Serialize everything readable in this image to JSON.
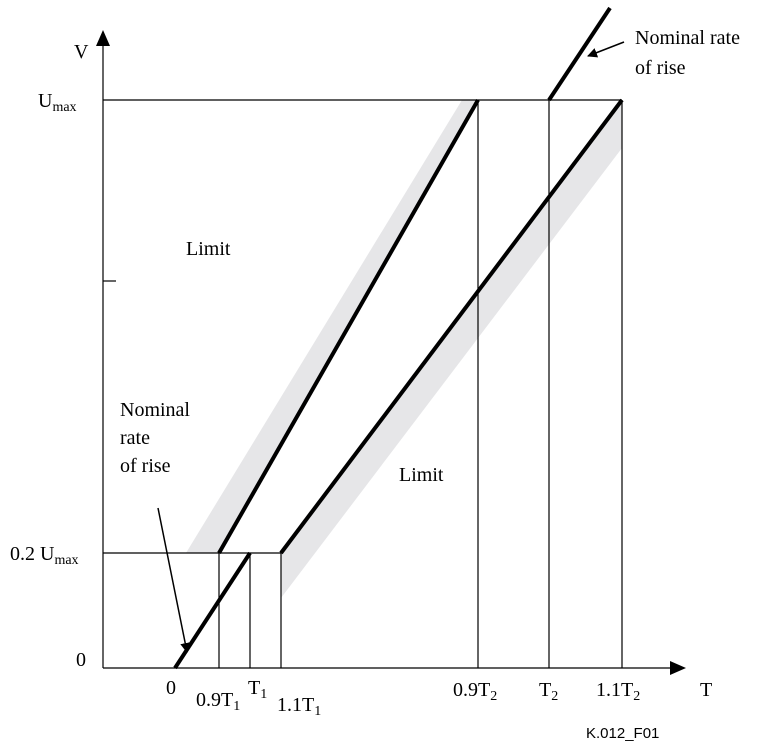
{
  "axes": {
    "y_axis_label": "V",
    "x_axis_label": "T"
  },
  "y_ticks": {
    "umax_main": "U",
    "umax_sub": "max",
    "low_prefix": "0.2 U",
    "low_sub": "max",
    "zero": "0"
  },
  "x_ticks": {
    "origin": "0",
    "t1_lower_prefix": "0.9T",
    "t1_lower_sub": "1",
    "t1_main": "T",
    "t1_sub": "1",
    "t1_upper_prefix": "1.1T",
    "t1_upper_sub": "1",
    "t2_lower_prefix": "0.9T",
    "t2_lower_sub": "2",
    "t2_main": "T",
    "t2_sub": "2",
    "t2_upper_prefix": "1.1T",
    "t2_upper_sub": "2"
  },
  "annotations": {
    "nominal_top_line1": "Nominal rate",
    "nominal_top_line2": "of rise",
    "nominal_left_line1": "Nominal",
    "nominal_left_line2": "rate",
    "nominal_left_line3": "of rise",
    "limit_upper": "Limit",
    "limit_lower": "Limit"
  },
  "figure_id": "K.012_F01",
  "colors": {
    "line": "#000000",
    "tolerance_band": "#e6e6e8",
    "background": "#ffffff"
  }
}
